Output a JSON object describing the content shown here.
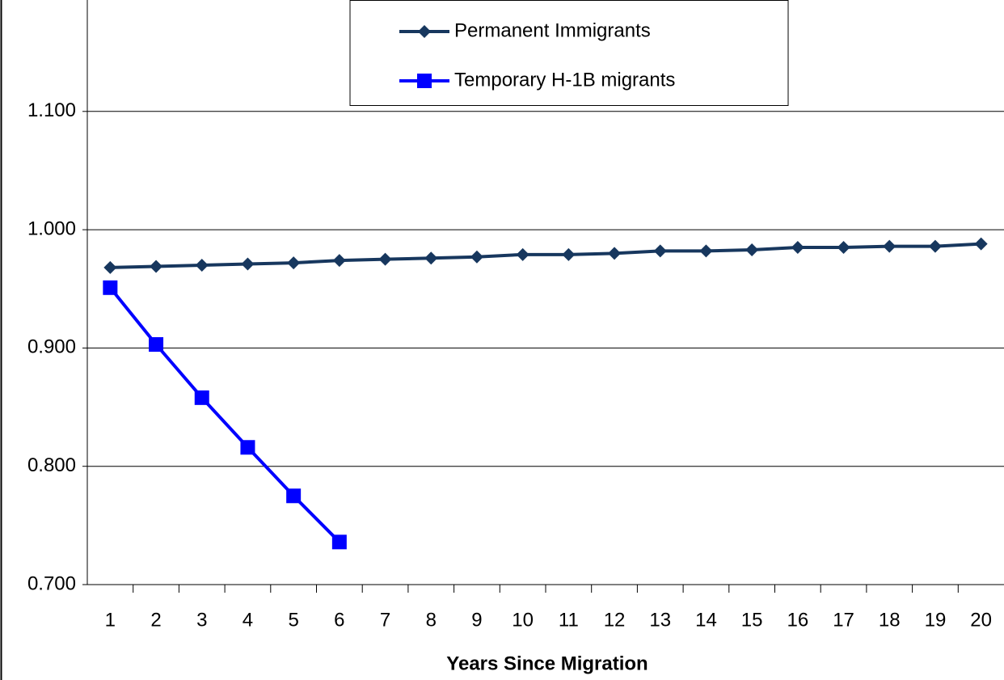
{
  "chart_data": {
    "type": "line",
    "x_label": "Years Since Migration",
    "categories": [
      "1",
      "2",
      "3",
      "4",
      "5",
      "6",
      "7",
      "8",
      "9",
      "10",
      "11",
      "12",
      "13",
      "14",
      "15",
      "16",
      "17",
      "18",
      "19",
      "20"
    ],
    "series": [
      {
        "name": "Permanent Immigrants",
        "color": "#17375e",
        "marker": "diamond",
        "values": [
          0.968,
          0.969,
          0.97,
          0.971,
          0.972,
          0.974,
          0.975,
          0.976,
          0.977,
          0.979,
          0.979,
          0.98,
          0.982,
          0.982,
          0.983,
          0.985,
          0.985,
          0.986,
          0.986,
          0.988
        ]
      },
      {
        "name": "Temporary H-1B migrants",
        "color": "#0000ff",
        "marker": "square",
        "values": [
          0.951,
          0.903,
          0.858,
          0.816,
          0.775,
          0.736,
          null,
          null,
          null,
          null,
          null,
          null,
          null,
          null,
          null,
          null,
          null,
          null,
          null,
          null
        ]
      }
    ],
    "ylim": [
      0.7,
      1.2
    ],
    "yticks": [
      {
        "value": 0.7,
        "label": "0.700"
      },
      {
        "value": 0.8,
        "label": "0.800"
      },
      {
        "value": 0.9,
        "label": "0.900"
      },
      {
        "value": 1.0,
        "label": "1.000"
      },
      {
        "value": 1.1,
        "label": "1.100"
      }
    ],
    "grid": true,
    "legend": "top"
  }
}
